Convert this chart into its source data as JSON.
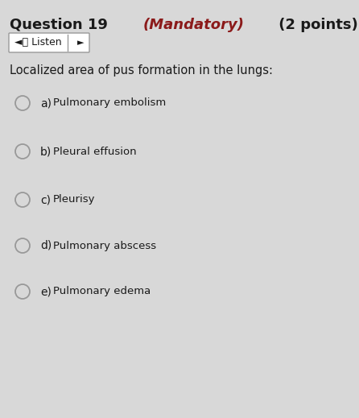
{
  "title_part1": "Question 19 ",
  "title_part2": "(Mandatory)",
  "title_part3": " (2 points)",
  "question_text": "Localized area of pus formation in the lungs:",
  "options": [
    {
      "label": "a)",
      "text": "Pulmonary embolism"
    },
    {
      "label": "b)",
      "text": "Pleural effusion"
    },
    {
      "label": "c)",
      "text": "Pleurisy"
    },
    {
      "label": "d)",
      "text": "Pulmonary abscess"
    },
    {
      "label": "e)",
      "text": "Pulmonary edema"
    }
  ],
  "bg_color": "#d8d8d8",
  "title_color": "#1a1a1a",
  "mandatory_color": "#8b1a1a",
  "question_color": "#1a1a1a",
  "option_label_color": "#1a1a1a",
  "option_text_color": "#1a1a1a",
  "circle_edge_color": "#999999",
  "listen_box_color": "#ffffff",
  "listen_box_edge": "#999999",
  "title_fontsize": 13,
  "question_fontsize": 10.5,
  "option_label_fontsize": 10,
  "option_text_fontsize": 10
}
